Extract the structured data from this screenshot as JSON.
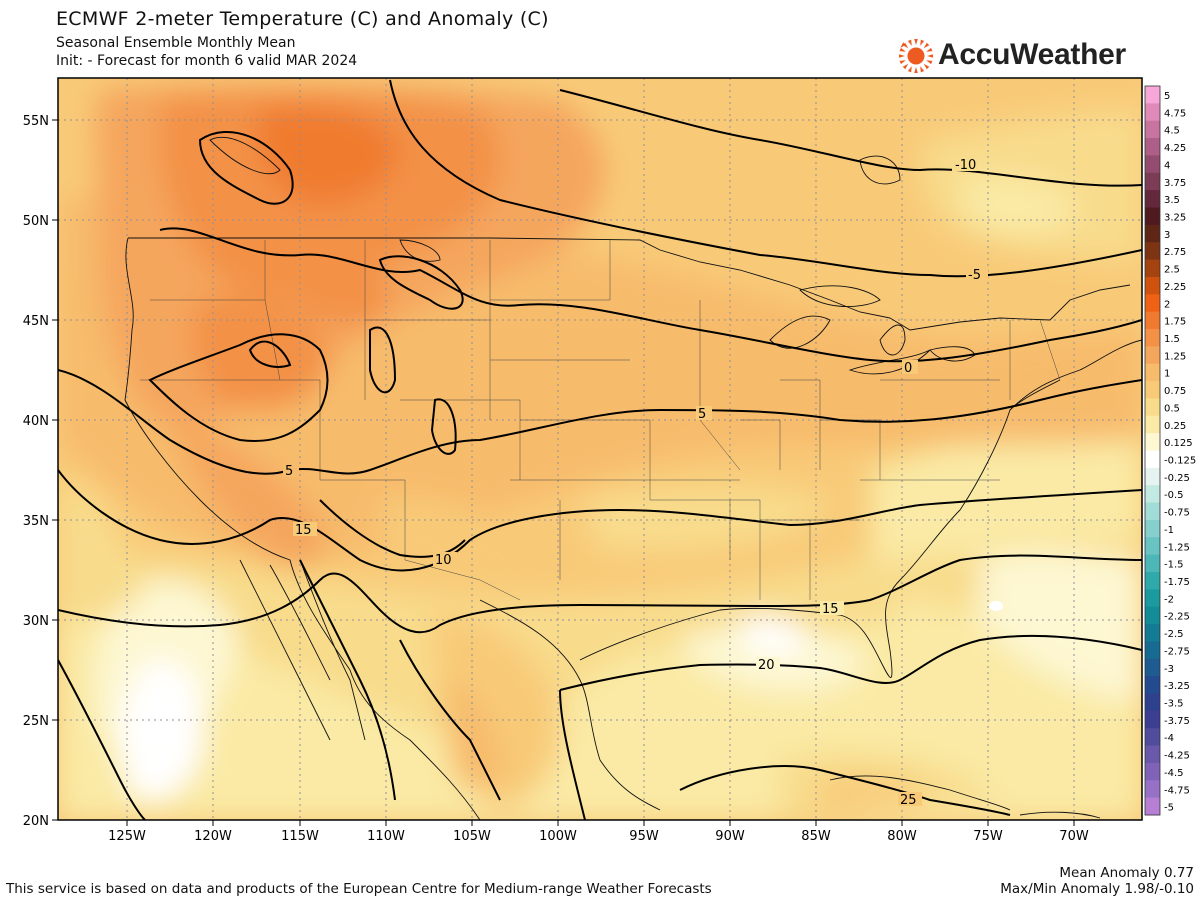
{
  "header": {
    "title": "ECMWF 2-meter Temperature (C) and Anomaly (C)",
    "subtitle": "Seasonal Ensemble Monthly Mean",
    "init_line": "Init:   - Forecast for month 6 valid MAR 2024"
  },
  "logo": {
    "text": "AccuWeather",
    "color": "#ee5b22"
  },
  "map": {
    "lat_labels": [
      "55N",
      "50N",
      "45N",
      "40N",
      "35N",
      "30N",
      "25N",
      "20N"
    ],
    "lon_labels": [
      "125W",
      "120W",
      "115W",
      "110W",
      "105W",
      "100W",
      "95W",
      "90W",
      "85W",
      "80W",
      "75W",
      "70W"
    ],
    "contour_labels": [
      "-10",
      "-5",
      "0",
      "5",
      "5",
      "10",
      "15",
      "15",
      "20",
      "25"
    ]
  },
  "colorbar": {
    "levels": [
      "5",
      "4.75",
      "4.5",
      "4.25",
      "4",
      "3.75",
      "3.5",
      "3.25",
      "3",
      "2.75",
      "2.5",
      "2.25",
      "2",
      "1.75",
      "1.5",
      "1.25",
      "1",
      "0.75",
      "0.5",
      "0.25",
      "0.125",
      "-0.125",
      "-0.25",
      "-0.5",
      "-0.75",
      "-1",
      "-1.25",
      "-1.5",
      "-1.75",
      "-2",
      "-2.25",
      "-2.5",
      "-2.75",
      "-3",
      "-3.25",
      "-3.5",
      "-3.75",
      "-4",
      "-4.25",
      "-4.5",
      "-4.75",
      "-5"
    ],
    "colors": [
      "#f7a8d8",
      "#e18ab9",
      "#c8749f",
      "#ad5f87",
      "#934c6f",
      "#7c3c55",
      "#63283c",
      "#4e1a20",
      "#5e2615",
      "#7e3412",
      "#a4430f",
      "#cf520f",
      "#ef6216",
      "#f07a2f",
      "#f39146",
      "#f5a65d",
      "#f7bb6c",
      "#f8ca78",
      "#f8dc8c",
      "#faeaa5",
      "#fdf7d2",
      "#ffffff",
      "#e6f4f1",
      "#c3e9e3",
      "#a2dcd6",
      "#85d0cc",
      "#68c3c2",
      "#4db6b6",
      "#2fa9aa",
      "#1b9b9f",
      "#148c98",
      "#137c94",
      "#176b92",
      "#1d5b91",
      "#244a8f",
      "#2e418f",
      "#3c3f91",
      "#524c9c",
      "#6a58aa",
      "#8063b8",
      "#9771c6",
      "#b67fd4"
    ]
  },
  "footer": {
    "credit": "This service is based on data and products of the European Centre for Medium-range Weather Forecasts",
    "mean_anomaly": "Mean Anomaly 0.77",
    "maxmin_anomaly": "Max/Min Anomaly 1.98/-0.10"
  }
}
